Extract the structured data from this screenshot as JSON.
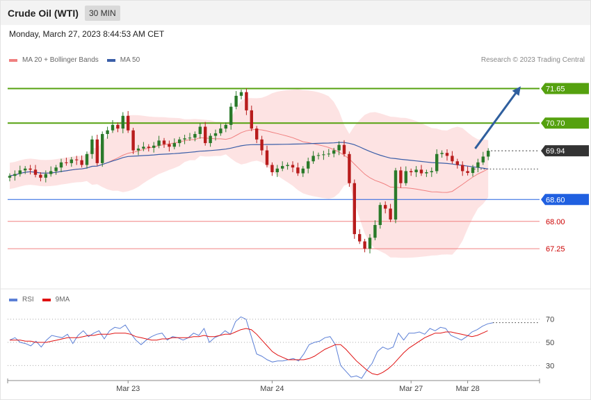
{
  "header": {
    "title": "Crude Oil (WTI)",
    "interval": "30 MIN"
  },
  "timestamp": "Monday, March 27, 2023 8:44:53 AM CET",
  "legend": {
    "items": [
      {
        "label": "MA 20 + Bollinger Bands",
        "color": "#f08080"
      },
      {
        "label": "MA 50",
        "color": "#3a5ea8"
      }
    ],
    "credit": "Research © 2023 Trading Central"
  },
  "rsi_legend": {
    "items": [
      {
        "label": "RSI",
        "color": "#5b7fd6"
      },
      {
        "label": "9MA",
        "color": "#e01010"
      }
    ]
  },
  "colors": {
    "resistance": "#55a10f",
    "support": "#2060e0",
    "support_light": "#f08080",
    "target_label_text": "#cc0000",
    "up_candle": "#2a7a2a",
    "down_candle": "#b81c1c",
    "band_fill": "#fde0e0",
    "ma20": "#f08080",
    "ma50": "#3a5ea8",
    "current_price_bg": "#333333",
    "arrow": "#2f5f9e"
  },
  "chart_data": {
    "type": "candlestick",
    "price_axis_ylim": [
      66.45,
      72.25
    ],
    "levels": [
      {
        "label": "71.65",
        "value": 71.65,
        "kind": "resistance"
      },
      {
        "label": "70.70",
        "value": 70.7,
        "kind": "resistance"
      },
      {
        "label": "69.94",
        "value": 69.94,
        "kind": "current"
      },
      {
        "label": "68.60",
        "value": 68.6,
        "kind": "support"
      },
      {
        "label": "68.00",
        "value": 68.0,
        "kind": "support-minor"
      },
      {
        "label": "67.25",
        "value": 67.25,
        "kind": "support-minor"
      }
    ],
    "x_ticks": [
      {
        "label": "Mar 23",
        "index": 23
      },
      {
        "label": "Mar 24",
        "index": 51
      },
      {
        "label": "Mar 27",
        "index": 78
      },
      {
        "label": "Mar 28",
        "index": 89
      }
    ],
    "forecast_arrow": {
      "from": {
        "index": 91,
        "value": 70.0
      },
      "to": {
        "index": 99,
        "value": 71.65
      }
    },
    "closes": [
      69.25,
      69.3,
      69.4,
      69.45,
      69.42,
      69.28,
      69.2,
      69.3,
      69.38,
      69.48,
      69.62,
      69.6,
      69.7,
      69.68,
      69.55,
      69.85,
      70.25,
      69.6,
      70.4,
      70.5,
      70.65,
      70.55,
      70.9,
      70.5,
      69.95,
      70.0,
      70.05,
      70.02,
      70.08,
      70.22,
      70.12,
      70.05,
      70.15,
      70.25,
      70.28,
      70.3,
      70.4,
      70.6,
      70.15,
      70.35,
      70.42,
      70.55,
      70.65,
      71.15,
      71.45,
      71.55,
      71.05,
      70.55,
      70.25,
      69.95,
      69.55,
      69.35,
      69.45,
      69.52,
      69.55,
      69.48,
      69.32,
      69.45,
      69.65,
      69.8,
      69.82,
      69.84,
      69.86,
      69.95,
      70.1,
      69.85,
      69.05,
      67.65,
      67.45,
      67.25,
      67.55,
      67.9,
      68.45,
      68.35,
      68.05,
      69.4,
      69.05,
      69.38,
      69.35,
      69.42,
      69.32,
      69.35,
      69.38,
      69.85,
      69.88,
      69.8,
      69.65,
      69.55,
      69.38,
      69.33,
      69.48,
      69.62,
      69.78,
      69.94
    ],
    "rsi": {
      "ylim": [
        20,
        80
      ],
      "levels": [
        70,
        50,
        30
      ],
      "rsi": [
        52,
        54,
        50,
        49,
        47,
        51,
        46,
        52,
        56,
        55,
        54,
        57,
        49,
        56,
        60,
        55,
        58,
        60,
        53,
        60,
        63,
        62,
        65,
        58,
        52,
        48,
        52,
        55,
        57,
        58,
        52,
        55,
        54,
        52,
        54,
        58,
        56,
        62,
        50,
        54,
        56,
        60,
        57,
        68,
        72,
        70,
        55,
        40,
        38,
        35,
        33,
        34,
        34,
        35,
        36,
        34,
        40,
        48,
        50,
        51,
        54,
        55,
        48,
        30,
        25,
        20,
        21,
        19,
        26,
        32,
        42,
        46,
        44,
        46,
        58,
        52,
        58,
        58,
        59,
        57,
        62,
        60,
        63,
        62,
        56,
        54,
        52,
        55,
        59,
        61,
        64,
        66,
        67
      ],
      "ma": [
        52,
        52,
        52,
        51,
        51,
        50,
        50,
        50,
        51,
        52,
        53,
        54,
        54,
        54,
        55,
        56,
        56,
        57,
        57,
        57,
        58,
        58,
        58,
        57,
        55,
        54,
        53,
        52,
        52,
        53,
        53,
        54,
        54,
        54,
        54,
        55,
        55,
        56,
        55,
        55,
        56,
        57,
        57,
        59,
        61,
        62,
        61,
        57,
        52,
        47,
        42,
        39,
        37,
        35,
        35,
        35,
        35,
        36,
        38,
        41,
        44,
        46,
        48,
        48,
        44,
        39,
        34,
        30,
        26,
        23,
        22,
        24,
        27,
        31,
        36,
        41,
        45,
        48,
        51,
        54,
        56,
        58,
        58,
        59,
        59,
        58,
        57,
        56,
        55,
        56,
        58,
        60
      ],
      "labels": [
        "70",
        "50",
        "30"
      ]
    }
  }
}
